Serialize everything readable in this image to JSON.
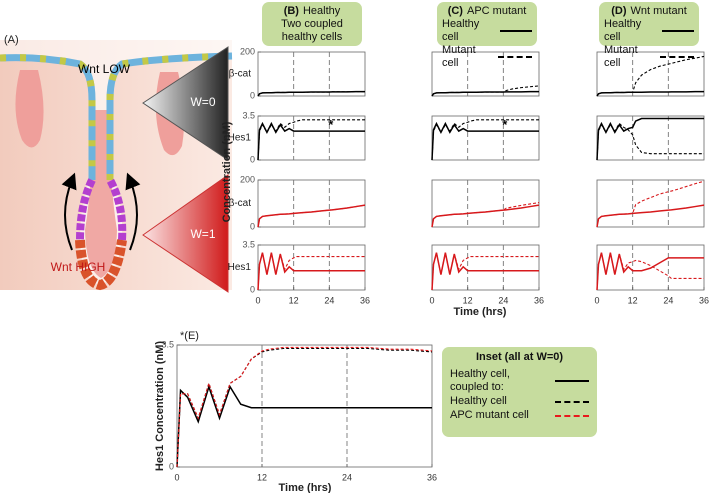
{
  "diagram": {
    "label": "(A)",
    "top": "Wnt LOW",
    "w0": "W=0",
    "w1": "W=1",
    "bottom": "Wnt HIGH"
  },
  "figure": {
    "ylabel": "Concentration (nM)",
    "xlabel": "Time (hrs)"
  },
  "chart_data": [
    {
      "type": "line",
      "panel": "(B)",
      "title": "Healthy",
      "subtitle": "Two coupled healthy cells",
      "ylabel": "β-cat",
      "xlim": [
        0,
        36
      ],
      "ylim": [
        0,
        200
      ],
      "yticks": [
        0,
        200
      ],
      "vlines": [
        12,
        24
      ],
      "x": [
        0,
        0.5,
        1.5,
        3,
        4.5,
        6,
        7.5,
        9,
        10.5,
        12,
        13,
        15,
        18,
        21,
        24,
        25,
        27,
        30,
        33,
        36
      ],
      "series": [
        {
          "color": "#000000",
          "dash": false,
          "values": [
            0,
            10,
            14,
            15,
            15,
            16,
            16,
            16,
            17,
            17,
            17,
            17,
            18,
            18,
            18,
            19,
            19,
            19,
            20,
            20
          ]
        },
        {
          "color": "#000000",
          "dash": true,
          "values": [
            0,
            10,
            14,
            15,
            15,
            16,
            16,
            16,
            17,
            17,
            17,
            17,
            18,
            18,
            18,
            19,
            19,
            19,
            20,
            20
          ]
        }
      ]
    },
    {
      "type": "line",
      "panel": "(C)",
      "title": "APC mutant",
      "ylabel": "β-cat",
      "xlim": [
        0,
        36
      ],
      "ylim": [
        0,
        200
      ],
      "vlines": [
        12,
        24
      ],
      "x": [
        0,
        0.5,
        1.5,
        3,
        4.5,
        6,
        7.5,
        9,
        10.5,
        12,
        13,
        15,
        18,
        21,
        24,
        25,
        27,
        30,
        33,
        36
      ],
      "series": [
        {
          "name": "Healthy cell",
          "color": "#000000",
          "dash": false,
          "values": [
            0,
            10,
            14,
            15,
            15,
            16,
            16,
            16,
            17,
            17,
            17,
            17,
            18,
            18,
            18,
            19,
            19,
            19,
            20,
            20
          ]
        },
        {
          "name": "Mutant cell",
          "color": "#000000",
          "dash": true,
          "values": [
            0,
            10,
            14,
            15,
            15,
            16,
            16,
            16,
            17,
            17,
            17,
            17,
            18,
            18,
            18,
            25,
            32,
            38,
            42,
            46
          ]
        }
      ]
    },
    {
      "type": "line",
      "panel": "(D)",
      "title": "Wnt mutant",
      "ylabel": "β-cat",
      "xlim": [
        0,
        36
      ],
      "ylim": [
        0,
        200
      ],
      "vlines": [
        12,
        24
      ],
      "x": [
        0,
        0.5,
        1.5,
        3,
        4.5,
        6,
        7.5,
        9,
        10.5,
        12,
        13,
        15,
        18,
        21,
        24,
        25,
        27,
        30,
        33,
        36
      ],
      "series": [
        {
          "name": "Healthy cell",
          "color": "#000000",
          "dash": false,
          "values": [
            0,
            10,
            14,
            15,
            15,
            16,
            16,
            16,
            17,
            17,
            17,
            17,
            18,
            18,
            18,
            19,
            19,
            19,
            20,
            20
          ]
        },
        {
          "name": "Mutant cell",
          "color": "#000000",
          "dash": true,
          "values": [
            0,
            10,
            14,
            15,
            15,
            16,
            16,
            16,
            17,
            17,
            60,
            95,
            120,
            135,
            145,
            148,
            155,
            165,
            172,
            180
          ]
        }
      ]
    },
    {
      "type": "line",
      "ylabel": "Hes1",
      "annotation": "*",
      "xlim": [
        0,
        36
      ],
      "ylim": [
        0,
        3.5
      ],
      "yticks": [
        0,
        3.5
      ],
      "vlines": [
        12,
        24
      ],
      "x": [
        0,
        0.5,
        1.5,
        3,
        4.5,
        6,
        7.5,
        9,
        10.5,
        12,
        13,
        15,
        18,
        21,
        24,
        25,
        27,
        30,
        33,
        36
      ],
      "series": [
        {
          "color": "#000000",
          "dash": false,
          "values": [
            0,
            2.4,
            2.9,
            2.2,
            2.9,
            2.2,
            2.8,
            2.3,
            2.5,
            2.3,
            2.3,
            2.3,
            2.3,
            2.3,
            2.3,
            2.3,
            2.3,
            2.3,
            2.3,
            2.3
          ]
        },
        {
          "color": "#000000",
          "dash": true,
          "values": [
            0,
            2.3,
            2.8,
            2.2,
            2.8,
            2.3,
            2.9,
            2.6,
            2.9,
            3.0,
            3.1,
            3.2,
            3.2,
            3.2,
            3.2,
            3.2,
            3.2,
            3.2,
            3.2,
            3.2
          ]
        }
      ]
    },
    {
      "type": "line",
      "ylabel": "Hes1",
      "annotation": "*",
      "xlim": [
        0,
        36
      ],
      "ylim": [
        0,
        3.5
      ],
      "vlines": [
        12,
        24
      ],
      "x": [
        0,
        0.5,
        1.5,
        3,
        4.5,
        6,
        7.5,
        9,
        10.5,
        12,
        13,
        15,
        18,
        21,
        24,
        25,
        27,
        30,
        33,
        36
      ],
      "series": [
        {
          "color": "#000000",
          "dash": false,
          "values": [
            0,
            2.4,
            2.9,
            2.2,
            2.9,
            2.2,
            2.8,
            2.3,
            2.5,
            2.3,
            2.3,
            2.3,
            2.3,
            2.3,
            2.3,
            2.3,
            2.3,
            2.3,
            2.3,
            2.3
          ]
        },
        {
          "color": "#000000",
          "dash": true,
          "values": [
            0,
            2.3,
            2.8,
            2.2,
            2.8,
            2.3,
            2.9,
            2.6,
            2.9,
            3.0,
            3.1,
            3.2,
            3.2,
            3.2,
            3.2,
            3.2,
            3.2,
            3.2,
            3.2,
            3.2
          ]
        }
      ]
    },
    {
      "type": "line",
      "ylabel": "Hes1",
      "xlim": [
        0,
        36
      ],
      "ylim": [
        0,
        3.5
      ],
      "vlines": [
        12,
        24
      ],
      "x": [
        0,
        0.5,
        1.5,
        3,
        4.5,
        6,
        7.5,
        9,
        10.5,
        12,
        13,
        15,
        18,
        21,
        24,
        25,
        27,
        30,
        33,
        36
      ],
      "series": [
        {
          "color": "#000000",
          "dash": false,
          "values": [
            0,
            2.4,
            2.9,
            2.2,
            2.9,
            2.2,
            2.8,
            2.3,
            2.5,
            2.6,
            3.1,
            3.3,
            3.3,
            3.3,
            3.3,
            3.3,
            3.3,
            3.3,
            3.3,
            3.3
          ]
        },
        {
          "color": "#000000",
          "dash": true,
          "values": [
            0,
            2.3,
            2.8,
            2.2,
            2.8,
            2.3,
            2.9,
            2.6,
            2.4,
            2.0,
            1.2,
            0.6,
            0.5,
            0.5,
            0.5,
            0.5,
            0.5,
            0.5,
            0.5,
            0.5
          ]
        }
      ]
    },
    {
      "type": "line",
      "ylabel": "β-cat",
      "xlim": [
        0,
        36
      ],
      "ylim": [
        0,
        200
      ],
      "yticks": [
        0,
        200
      ],
      "vlines": [
        12,
        24
      ],
      "x": [
        0,
        0.5,
        1.5,
        3,
        4.5,
        6,
        7.5,
        9,
        10.5,
        12,
        13,
        15,
        18,
        21,
        24,
        25,
        27,
        30,
        33,
        36
      ],
      "series": [
        {
          "color": "#d7191c",
          "dash": false,
          "values": [
            0,
            35,
            45,
            48,
            50,
            52,
            54,
            55,
            56,
            58,
            59,
            61,
            64,
            68,
            72,
            73,
            76,
            81,
            87,
            93
          ]
        },
        {
          "color": "#d7191c",
          "dash": true,
          "values": [
            0,
            35,
            45,
            48,
            50,
            52,
            54,
            55,
            56,
            58,
            59,
            61,
            64,
            68,
            72,
            73,
            76,
            81,
            87,
            93
          ]
        }
      ]
    },
    {
      "type": "line",
      "ylabel": "β-cat",
      "xlim": [
        0,
        36
      ],
      "ylim": [
        0,
        200
      ],
      "vlines": [
        12,
        24
      ],
      "x": [
        0,
        0.5,
        1.5,
        3,
        4.5,
        6,
        7.5,
        9,
        10.5,
        12,
        13,
        15,
        18,
        21,
        24,
        25,
        27,
        30,
        33,
        36
      ],
      "series": [
        {
          "color": "#d7191c",
          "dash": false,
          "values": [
            0,
            35,
            45,
            48,
            50,
            52,
            54,
            55,
            56,
            58,
            59,
            61,
            64,
            68,
            72,
            73,
            76,
            81,
            87,
            93
          ]
        },
        {
          "color": "#d7191c",
          "dash": true,
          "values": [
            0,
            35,
            45,
            48,
            50,
            52,
            54,
            55,
            56,
            58,
            59,
            61,
            64,
            68,
            72,
            80,
            85,
            92,
            98,
            104
          ]
        }
      ]
    },
    {
      "type": "line",
      "ylabel": "β-cat",
      "xlim": [
        0,
        36
      ],
      "ylim": [
        0,
        200
      ],
      "vlines": [
        12,
        24
      ],
      "x": [
        0,
        0.5,
        1.5,
        3,
        4.5,
        6,
        7.5,
        9,
        10.5,
        12,
        13,
        15,
        18,
        21,
        24,
        25,
        27,
        30,
        33,
        36
      ],
      "series": [
        {
          "color": "#d7191c",
          "dash": false,
          "values": [
            0,
            35,
            45,
            48,
            50,
            52,
            54,
            55,
            56,
            58,
            59,
            61,
            64,
            68,
            72,
            73,
            76,
            81,
            87,
            93
          ]
        },
        {
          "color": "#d7191c",
          "dash": true,
          "values": [
            0,
            35,
            45,
            48,
            50,
            52,
            54,
            55,
            56,
            58,
            95,
            110,
            125,
            140,
            150,
            153,
            160,
            172,
            184,
            195
          ]
        }
      ]
    },
    {
      "type": "line",
      "ylabel": "Hes1",
      "xlim": [
        0,
        36
      ],
      "ylim": [
        0,
        3.5
      ],
      "yticks": [
        0,
        3.5
      ],
      "xticks": [
        0,
        12,
        24,
        36
      ],
      "vlines": [
        12,
        24
      ],
      "x": [
        0,
        0.5,
        1.5,
        3,
        4.5,
        6,
        7.5,
        9,
        10.5,
        12,
        13,
        15,
        18,
        21,
        24,
        25,
        27,
        30,
        33,
        36
      ],
      "series": [
        {
          "color": "#d7191c",
          "dash": false,
          "values": [
            0,
            2.0,
            2.9,
            1.2,
            2.9,
            1.2,
            2.8,
            1.4,
            1.8,
            1.5,
            1.5,
            1.5,
            1.5,
            1.5,
            1.5,
            1.5,
            1.5,
            1.5,
            1.5,
            1.5
          ]
        },
        {
          "color": "#d7191c",
          "dash": true,
          "values": [
            0,
            2.0,
            2.9,
            1.2,
            2.9,
            1.2,
            2.8,
            1.6,
            2.3,
            2.5,
            2.6,
            2.6,
            2.6,
            2.6,
            2.6,
            2.6,
            2.6,
            2.6,
            2.6,
            2.6
          ]
        }
      ]
    },
    {
      "type": "line",
      "ylabel": "Hes1",
      "xlim": [
        0,
        36
      ],
      "ylim": [
        0,
        3.5
      ],
      "xticks": [
        0,
        12,
        24,
        36
      ],
      "vlines": [
        12,
        24
      ],
      "x": [
        0,
        0.5,
        1.5,
        3,
        4.5,
        6,
        7.5,
        9,
        10.5,
        12,
        13,
        15,
        18,
        21,
        24,
        25,
        27,
        30,
        33,
        36
      ],
      "series": [
        {
          "color": "#d7191c",
          "dash": false,
          "values": [
            0,
            2.0,
            2.9,
            1.2,
            2.9,
            1.2,
            2.8,
            1.4,
            1.8,
            1.5,
            1.5,
            1.5,
            1.5,
            1.5,
            1.5,
            1.5,
            1.5,
            1.5,
            1.5,
            1.5
          ]
        },
        {
          "color": "#d7191c",
          "dash": true,
          "values": [
            0,
            2.0,
            2.9,
            1.2,
            2.9,
            1.2,
            2.8,
            1.6,
            2.3,
            2.5,
            2.6,
            2.6,
            2.6,
            2.6,
            2.6,
            2.6,
            2.6,
            2.6,
            2.6,
            2.6
          ]
        }
      ]
    },
    {
      "type": "line",
      "ylabel": "Hes1",
      "xlim": [
        0,
        36
      ],
      "ylim": [
        0,
        3.5
      ],
      "xticks": [
        0,
        12,
        24,
        36
      ],
      "vlines": [
        12,
        24
      ],
      "x": [
        0,
        0.5,
        1.5,
        3,
        4.5,
        6,
        7.5,
        9,
        10.5,
        12,
        13,
        15,
        18,
        21,
        24,
        25,
        27,
        30,
        33,
        36
      ],
      "series": [
        {
          "color": "#d7191c",
          "dash": false,
          "values": [
            0,
            2.0,
            2.9,
            1.2,
            2.9,
            1.2,
            2.8,
            1.4,
            1.8,
            1.5,
            1.5,
            1.5,
            1.7,
            2.1,
            2.5,
            2.5,
            2.5,
            2.5,
            2.5,
            2.5
          ]
        },
        {
          "color": "#d7191c",
          "dash": true,
          "values": [
            0,
            2.0,
            2.9,
            1.2,
            2.9,
            1.2,
            2.8,
            1.6,
            2.1,
            2.2,
            2.3,
            2.2,
            1.9,
            1.5,
            1.1,
            0.9,
            0.9,
            0.9,
            0.9,
            0.9
          ]
        }
      ]
    },
    {
      "type": "line",
      "panel": "*(E)",
      "ylabel": "Hes1 Concentration (nM)",
      "xlabel": "Time (hrs)",
      "legend_title": "Inset (all at W=0)",
      "xlim": [
        0,
        36
      ],
      "ylim": [
        0,
        3.5
      ],
      "yticks": [
        0,
        3.5
      ],
      "xticks": [
        0,
        12,
        24,
        36
      ],
      "vlines": [
        12,
        24
      ],
      "x": [
        0,
        0.5,
        1.5,
        3,
        4.5,
        6,
        7.5,
        9,
        10.5,
        12,
        13,
        15,
        18,
        21,
        24,
        25,
        27,
        30,
        33,
        36
      ],
      "series": [
        {
          "name": "Healthy cell, coupled to:",
          "color": "#000000",
          "dash": false,
          "values": [
            0,
            2.2,
            2.0,
            1.3,
            2.3,
            1.4,
            2.3,
            1.8,
            1.7,
            1.7,
            1.7,
            1.7,
            1.7,
            1.7,
            1.7,
            1.7,
            1.7,
            1.7,
            1.7,
            1.7
          ]
        },
        {
          "name": "Healthy cell",
          "color": "#000000",
          "dash": true,
          "values": [
            0,
            2.1,
            2.1,
            1.4,
            2.4,
            1.5,
            2.4,
            2.6,
            3.1,
            3.3,
            3.35,
            3.4,
            3.4,
            3.4,
            3.4,
            3.4,
            3.4,
            3.35,
            3.35,
            3.3
          ]
        },
        {
          "name": "APC mutant cell",
          "color": "#e8191c",
          "dash": true,
          "values": [
            0,
            2.1,
            2.1,
            1.4,
            2.4,
            1.5,
            2.4,
            2.6,
            3.1,
            3.33,
            3.38,
            3.43,
            3.43,
            3.43,
            3.43,
            3.43,
            3.43,
            3.38,
            3.38,
            3.33
          ]
        }
      ]
    }
  ]
}
